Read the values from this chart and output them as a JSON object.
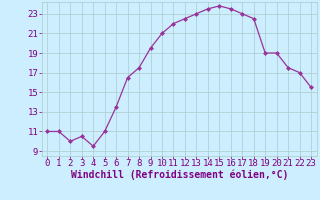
{
  "x": [
    0,
    1,
    2,
    3,
    4,
    5,
    6,
    7,
    8,
    9,
    10,
    11,
    12,
    13,
    14,
    15,
    16,
    17,
    18,
    19,
    20,
    21,
    22,
    23
  ],
  "y": [
    11,
    11,
    10,
    10.5,
    9.5,
    11,
    13.5,
    16.5,
    17.5,
    19.5,
    21,
    22,
    22.5,
    23,
    23.5,
    23.8,
    23.5,
    23,
    22.5,
    19,
    19,
    17.5,
    17,
    15.5
  ],
  "line_color": "#993399",
  "marker_color": "#993399",
  "bg_color": "#cceeff",
  "grid_color": "#aacccc",
  "xlabel": "Windchill (Refroidissement éolien,°C)",
  "xlim": [
    -0.5,
    23.5
  ],
  "ylim": [
    8.5,
    24.2
  ],
  "yticks": [
    9,
    11,
    13,
    15,
    17,
    19,
    21,
    23
  ],
  "xticks": [
    0,
    1,
    2,
    3,
    4,
    5,
    6,
    7,
    8,
    9,
    10,
    11,
    12,
    13,
    14,
    15,
    16,
    17,
    18,
    19,
    20,
    21,
    22,
    23
  ],
  "font_color": "#800080",
  "font_size": 6.5,
  "label_font_size": 7
}
